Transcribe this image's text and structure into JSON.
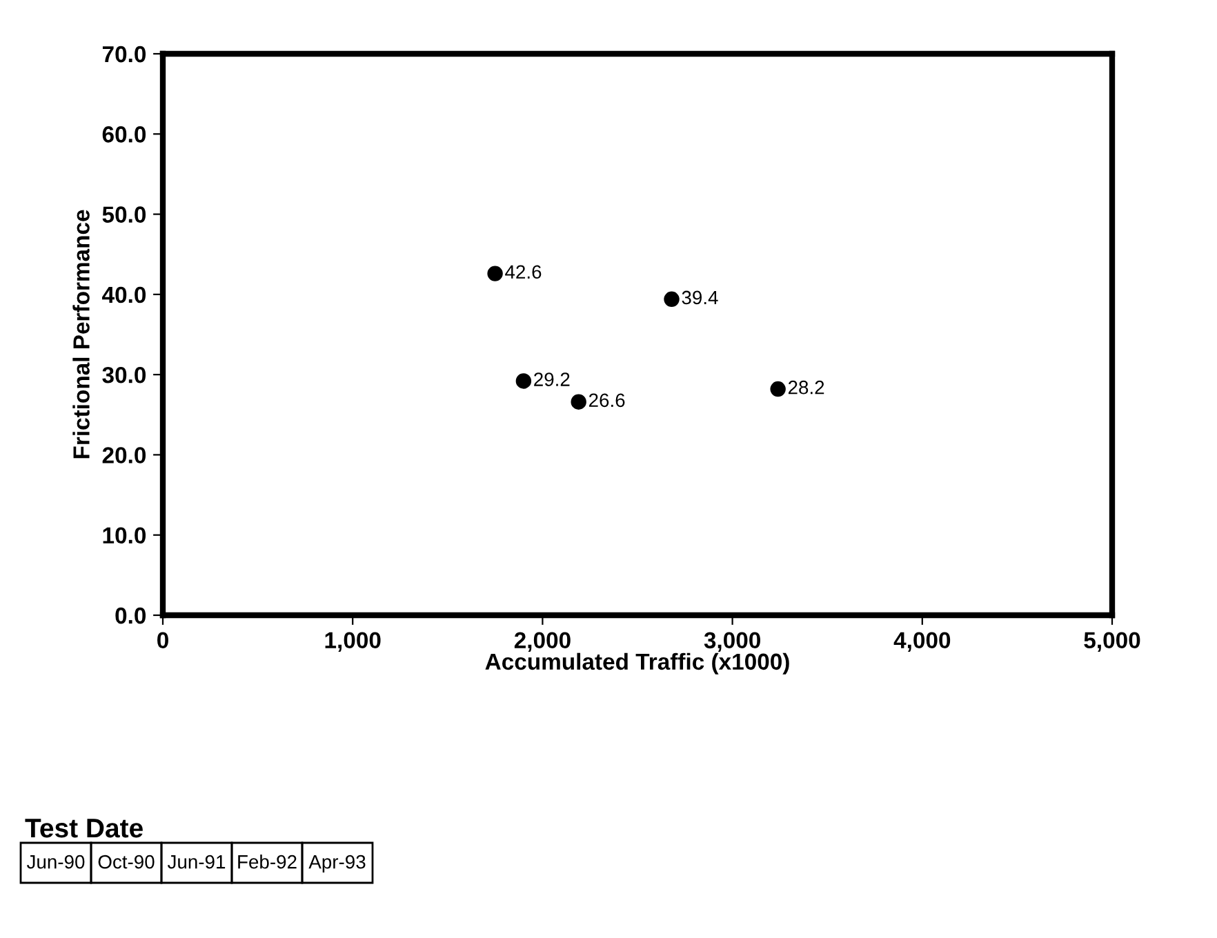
{
  "chart_data": {
    "type": "scatter",
    "xlabel": "Accumulated Traffic (x1000)",
    "ylabel": "Frictional Performance",
    "x": [
      1750,
      1900,
      2190,
      2680,
      3240
    ],
    "values": [
      42.6,
      29.2,
      26.6,
      39.4,
      28.2
    ],
    "color": "#000000",
    "marker": "circle",
    "data_labels": true,
    "xlim": [
      0,
      5000
    ],
    "xticks": [
      {
        "value": 0,
        "label": "0"
      },
      {
        "value": 1000,
        "label": "1,000"
      },
      {
        "value": 2000,
        "label": "2,000"
      },
      {
        "value": 3000,
        "label": "3,000"
      },
      {
        "value": 4000,
        "label": "4,000"
      },
      {
        "value": 5000,
        "label": "5,000"
      }
    ],
    "ylim": [
      0,
      70
    ],
    "yticks": [
      {
        "value": 0,
        "label": "0.0"
      },
      {
        "value": 10,
        "label": "10.0"
      },
      {
        "value": 20,
        "label": "20.0"
      },
      {
        "value": 30,
        "label": "30.0"
      },
      {
        "value": 40,
        "label": "40.0"
      },
      {
        "value": 50,
        "label": "50.0"
      },
      {
        "value": 60,
        "label": "60.0"
      },
      {
        "value": 70,
        "label": "70.0"
      }
    ],
    "grid": false,
    "annotations": [
      "Test Date",
      "Jun-90",
      "Oct-90",
      "Jun-91",
      "Feb-92",
      "Apr-93"
    ]
  }
}
